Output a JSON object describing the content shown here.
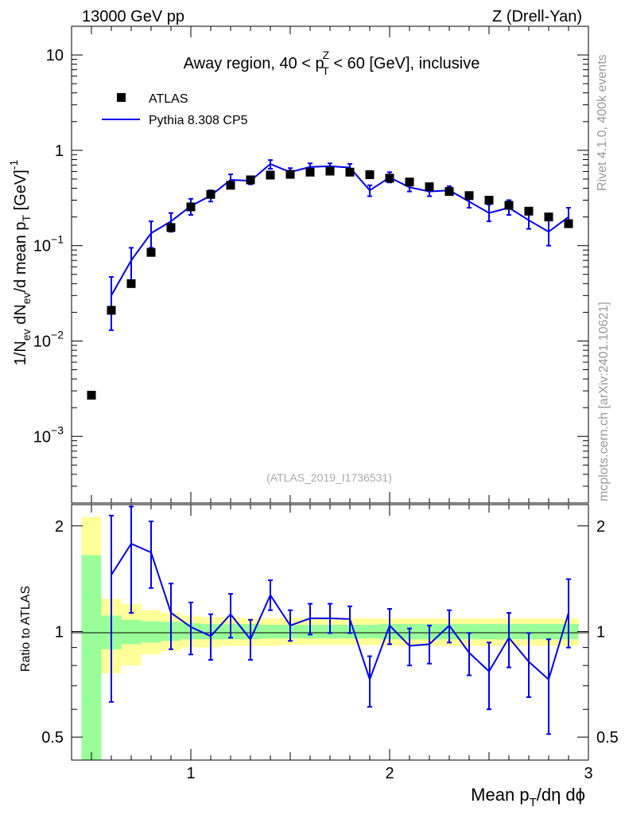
{
  "header": {
    "left": "13000 GeV pp",
    "right": "Z (Drell-Yan)"
  },
  "side_labels": {
    "rivet": "Rivet 4.1.0,  400k events",
    "mcplots": "mcplots.cern.ch [arXiv:2401.10621]"
  },
  "colors": {
    "data": "#000000",
    "mc": "#0000ee",
    "band_inner": "#99ff99",
    "band_outer": "#ffff99"
  },
  "chart_data": [
    {
      "type": "scatter",
      "panel": "main",
      "title": {
        "pre": "Away region, 40 < p",
        "sup": "Z",
        "sub": "T",
        "post": " < 60 [GeV], inclusive"
      },
      "ylabel": {
        "part1": "1/N",
        "sub1": "ev",
        "part2": " dN",
        "sub2": "ev",
        "part3": "/d mean p",
        "sub3": "T",
        "part4": " [GeV]",
        "sup4": "-1"
      },
      "yscale": "log",
      "xlim": [
        0.4,
        3.0
      ],
      "ylim": [
        0.0002,
        20
      ],
      "ytick_labels": [
        {
          "value": 0.001,
          "base": "10",
          "exp": "−3"
        },
        {
          "value": 0.01,
          "base": "10",
          "exp": "−2"
        },
        {
          "value": 0.1,
          "base": "10",
          "exp": "−1"
        },
        {
          "value": 1,
          "base": "1",
          "exp": ""
        },
        {
          "value": 10,
          "base": "10",
          "exp": ""
        }
      ],
      "legend": {
        "position": "top-left",
        "data_label": "ATLAS",
        "mc_label": "Pythia 8.308 CP5"
      },
      "watermark": "(ATLAS_2019_I1736531)",
      "series": [
        {
          "name": "ATLAS",
          "style": "markers",
          "x": [
            0.5,
            0.6,
            0.7,
            0.8,
            0.9,
            1.0,
            1.1,
            1.2,
            1.3,
            1.4,
            1.5,
            1.6,
            1.7,
            1.8,
            1.9,
            2.0,
            2.1,
            2.2,
            2.3,
            2.4,
            2.5,
            2.6,
            2.7,
            2.8,
            2.9
          ],
          "values": [
            0.0027,
            0.021,
            0.04,
            0.085,
            0.155,
            0.255,
            0.345,
            0.43,
            0.49,
            0.55,
            0.56,
            0.59,
            0.605,
            0.59,
            0.555,
            0.51,
            0.465,
            0.415,
            0.37,
            0.335,
            0.3,
            0.265,
            0.23,
            0.2,
            0.17
          ]
        },
        {
          "name": "Pythia 8.308 CP5",
          "style": "line",
          "x": [
            0.6,
            0.7,
            0.8,
            0.9,
            1.0,
            1.1,
            1.2,
            1.3,
            1.4,
            1.5,
            1.6,
            1.7,
            1.8,
            1.9,
            2.0,
            2.1,
            2.2,
            2.3,
            2.4,
            2.5,
            2.6,
            2.7,
            2.8,
            2.9
          ],
          "values": [
            0.03,
            0.07,
            0.135,
            0.18,
            0.26,
            0.335,
            0.49,
            0.48,
            0.72,
            0.59,
            0.67,
            0.68,
            0.66,
            0.38,
            0.52,
            0.41,
            0.37,
            0.38,
            0.29,
            0.22,
            0.25,
            0.185,
            0.14,
            0.2
          ],
          "err_low": [
            0.013,
            0.04,
            0.095,
            0.14,
            0.21,
            0.29,
            0.42,
            0.44,
            0.64,
            0.54,
            0.6,
            0.62,
            0.6,
            0.33,
            0.46,
            0.37,
            0.33,
            0.34,
            0.25,
            0.18,
            0.21,
            0.15,
            0.1,
            0.16
          ],
          "err_high": [
            0.047,
            0.095,
            0.18,
            0.22,
            0.31,
            0.38,
            0.56,
            0.53,
            0.79,
            0.65,
            0.73,
            0.73,
            0.72,
            0.43,
            0.59,
            0.46,
            0.41,
            0.42,
            0.34,
            0.27,
            0.3,
            0.23,
            0.19,
            0.25
          ]
        }
      ]
    },
    {
      "type": "line",
      "panel": "ratio",
      "ylabel": "Ratio to ATLAS",
      "xlabel": {
        "part1": "Mean p",
        "sub1": "T",
        "part2": "/dη dϕ"
      },
      "yscale": "log",
      "xlim": [
        0.4,
        3.0
      ],
      "ylim": [
        0.43,
        2.3
      ],
      "ytick_labels": [
        {
          "value": 0.5,
          "label": "0.5"
        },
        {
          "value": 1,
          "label": "1"
        },
        {
          "value": 2,
          "label": "2"
        }
      ],
      "xtick_labels": [
        {
          "value": 1,
          "label": "1"
        },
        {
          "value": 2,
          "label": "2"
        },
        {
          "value": 3,
          "label": "3"
        }
      ],
      "bands": {
        "edges": [
          0.45,
          0.55,
          0.65,
          0.75,
          0.85,
          0.95,
          1.05,
          1.15,
          1.25,
          1.35,
          1.45,
          1.55,
          1.65,
          1.75,
          1.85,
          1.95,
          2.05,
          2.15,
          2.25,
          2.35,
          2.45,
          2.55,
          2.65,
          2.75,
          2.85,
          2.95
        ],
        "inner_low": [
          0.37,
          0.89,
          0.92,
          0.93,
          0.94,
          0.95,
          0.95,
          0.95,
          0.95,
          0.955,
          0.955,
          0.955,
          0.955,
          0.955,
          0.955,
          0.95,
          0.95,
          0.95,
          0.95,
          0.95,
          0.95,
          0.95,
          0.95,
          0.95,
          0.95
        ],
        "inner_high": [
          1.65,
          1.11,
          1.08,
          1.07,
          1.065,
          1.055,
          1.05,
          1.05,
          1.05,
          1.045,
          1.045,
          1.045,
          1.045,
          1.045,
          1.045,
          1.05,
          1.05,
          1.05,
          1.05,
          1.05,
          1.05,
          1.05,
          1.05,
          1.05,
          1.05
        ],
        "outer_low": [
          0.35,
          0.76,
          0.8,
          0.86,
          0.88,
          0.9,
          0.9,
          0.91,
          0.91,
          0.91,
          0.915,
          0.915,
          0.915,
          0.915,
          0.915,
          0.91,
          0.91,
          0.91,
          0.91,
          0.91,
          0.91,
          0.91,
          0.91,
          0.91,
          0.91
        ],
        "outer_high": [
          2.12,
          1.24,
          1.2,
          1.15,
          1.13,
          1.11,
          1.1,
          1.1,
          1.09,
          1.09,
          1.09,
          1.09,
          1.09,
          1.09,
          1.09,
          1.09,
          1.09,
          1.09,
          1.09,
          1.09,
          1.09,
          1.09,
          1.09,
          1.09,
          1.09
        ]
      },
      "series": [
        {
          "name": "Pythia 8.308 CP5 / ATLAS",
          "x": [
            0.6,
            0.7,
            0.8,
            0.9,
            1.0,
            1.1,
            1.2,
            1.3,
            1.4,
            1.5,
            1.6,
            1.7,
            1.8,
            1.9,
            2.0,
            2.1,
            2.2,
            2.3,
            2.4,
            2.5,
            2.6,
            2.7,
            2.8,
            2.9
          ],
          "values": [
            1.45,
            1.78,
            1.68,
            1.13,
            1.03,
            0.97,
            1.12,
            0.95,
            1.27,
            1.04,
            1.09,
            1.09,
            1.085,
            0.73,
            1.04,
            0.91,
            0.92,
            1.04,
            0.87,
            0.77,
            0.96,
            0.82,
            0.73,
            1.13
          ],
          "err_low": [
            0.63,
            1.13,
            1.33,
            0.89,
            0.86,
            0.83,
            0.96,
            0.83,
            1.15,
            0.94,
            0.98,
            0.99,
            0.99,
            0.61,
            0.92,
            0.8,
            0.81,
            0.93,
            0.75,
            0.6,
            0.79,
            0.65,
            0.51,
            0.9
          ],
          "err_high": [
            2.14,
            2.27,
            2.06,
            1.37,
            1.21,
            1.12,
            1.28,
            1.08,
            1.4,
            1.15,
            1.2,
            1.2,
            1.18,
            0.85,
            1.16,
            1.02,
            1.04,
            1.15,
            0.99,
            0.93,
            1.13,
            0.99,
            0.95,
            1.41
          ]
        }
      ]
    }
  ]
}
